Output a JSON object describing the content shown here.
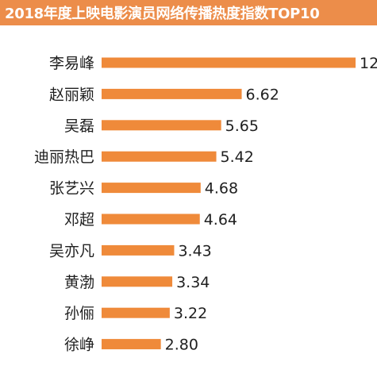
{
  "colors": {
    "title_background": "#ec8d4a",
    "bar": "#ef8a3a",
    "text": "#1f1f1f"
  },
  "chart_data": {
    "type": "bar",
    "orientation": "horizontal",
    "title": "2018年度上映电影演员网络传播热度指数TOP10",
    "xlabel": "",
    "ylabel": "",
    "xlim": [
      0,
      12
    ],
    "grid": false,
    "legend": "none",
    "categories": [
      "李易峰",
      "赵丽颖",
      "吴磊",
      "迪丽热巴",
      "张艺兴",
      "邓超",
      "吴亦凡",
      "黄渤",
      "孙俪",
      "徐峥"
    ],
    "values": [
      12,
      6.62,
      5.65,
      5.42,
      4.68,
      4.64,
      3.43,
      3.34,
      3.22,
      2.8
    ],
    "value_labels": [
      "12",
      "6.62",
      "5.65",
      "5.42",
      "4.68",
      "4.64",
      "3.43",
      "3.34",
      "3.22",
      "2.80"
    ]
  }
}
